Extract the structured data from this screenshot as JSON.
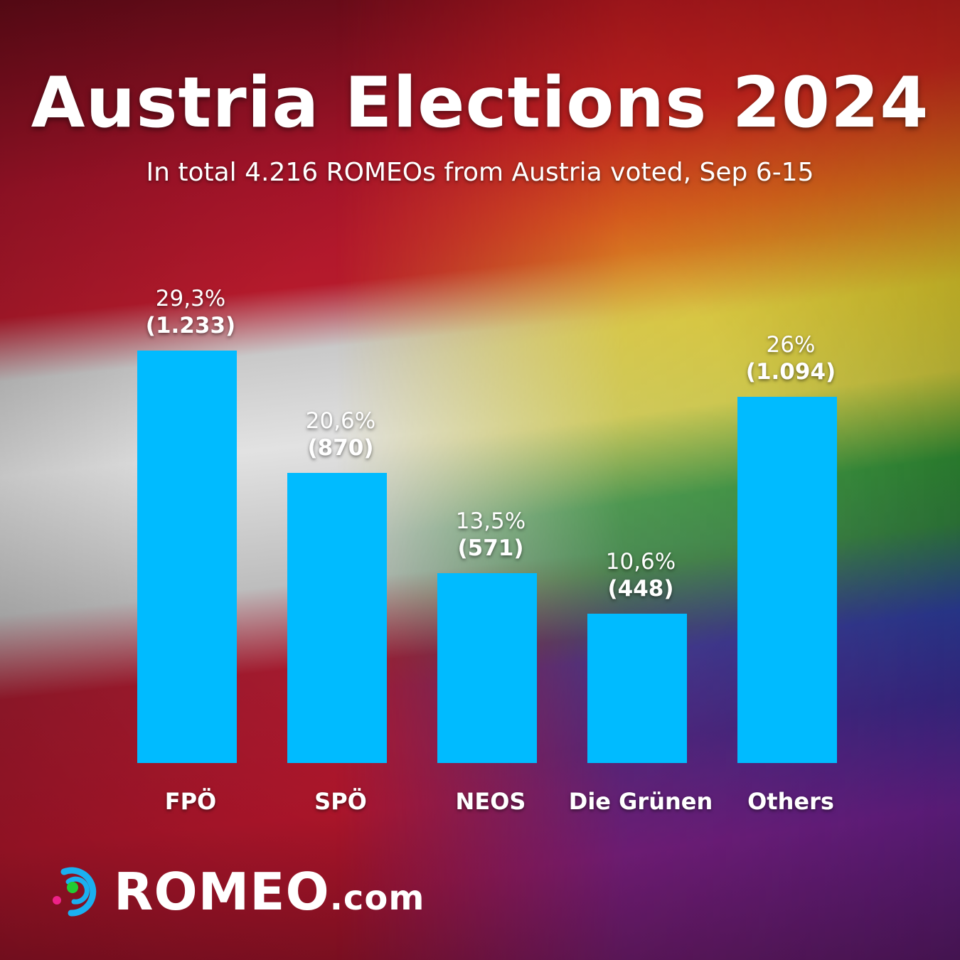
{
  "chart_data": {
    "type": "bar",
    "title": "Austria Elections 2024",
    "subtitle": "In total 4.216 ROMEOs from Austria voted, Sep 6-15",
    "categories": [
      "FPÖ",
      "SPÖ",
      "NEOS",
      "Die Grünen",
      "Others"
    ],
    "values": [
      29.3,
      20.6,
      13.5,
      10.6,
      26
    ],
    "value_labels": [
      "29,3%",
      "20,6%",
      "13,5%",
      "10,6%",
      "26%"
    ],
    "counts": [
      1233,
      870,
      571,
      448,
      1094
    ],
    "count_labels": [
      "(1.233)",
      "(870)",
      "(571)",
      "(448)",
      "(1.094)"
    ],
    "xlabel": "",
    "ylabel": "",
    "ylim": [
      0,
      30
    ],
    "grid": false,
    "bar_color": "#00bbff"
  },
  "brand": {
    "name": "ROMEO",
    "suffix": ".com"
  }
}
